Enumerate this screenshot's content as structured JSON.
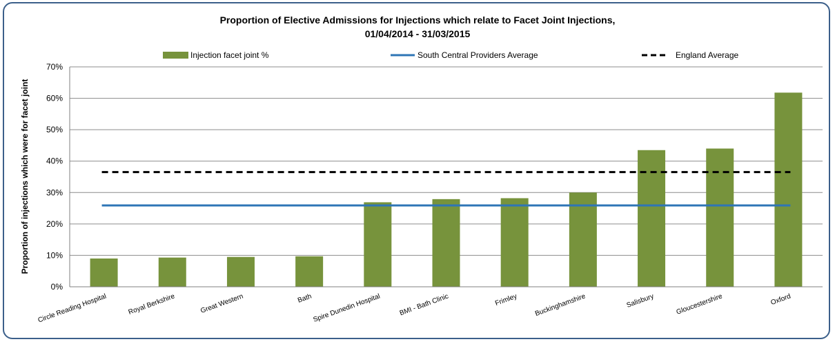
{
  "chart_data": {
    "type": "bar",
    "title_line1": "Proportion of Elective Admissions for Injections which relate to Facet Joint Injections,",
    "title_line2": "01/04/2014 - 31/03/2015",
    "xlabel": "",
    "ylabel": "Proportion of injections which were for facet joint",
    "ylim": [
      0,
      70
    ],
    "yticks": [
      0,
      10,
      20,
      30,
      40,
      50,
      60,
      70
    ],
    "ytick_labels": [
      "0%",
      "10%",
      "20%",
      "30%",
      "40%",
      "50%",
      "60%",
      "70%"
    ],
    "grid": true,
    "legend_position": "top",
    "categories": [
      "Circle Reading Hospital",
      "Royal Berkshire",
      "Great Western",
      "Bath",
      "Spire Dunedin Hospital",
      "BMI - Bath Clinic",
      "Frimley",
      "Buckinghamshire",
      "Salisbury",
      "Gloucestershire",
      "Oxford"
    ],
    "series": [
      {
        "name": "Injection facet joint %",
        "kind": "bar",
        "color": "#77933c",
        "values": [
          9.0,
          9.3,
          9.5,
          9.7,
          26.9,
          27.9,
          28.2,
          30.0,
          43.5,
          44.0,
          61.8
        ]
      },
      {
        "name": "South Central Providers Average",
        "kind": "line",
        "color": "#2e75b6",
        "value": 25.9
      },
      {
        "name": "England Average",
        "kind": "dashed-line",
        "color": "#000000",
        "value": 36.5
      }
    ]
  }
}
